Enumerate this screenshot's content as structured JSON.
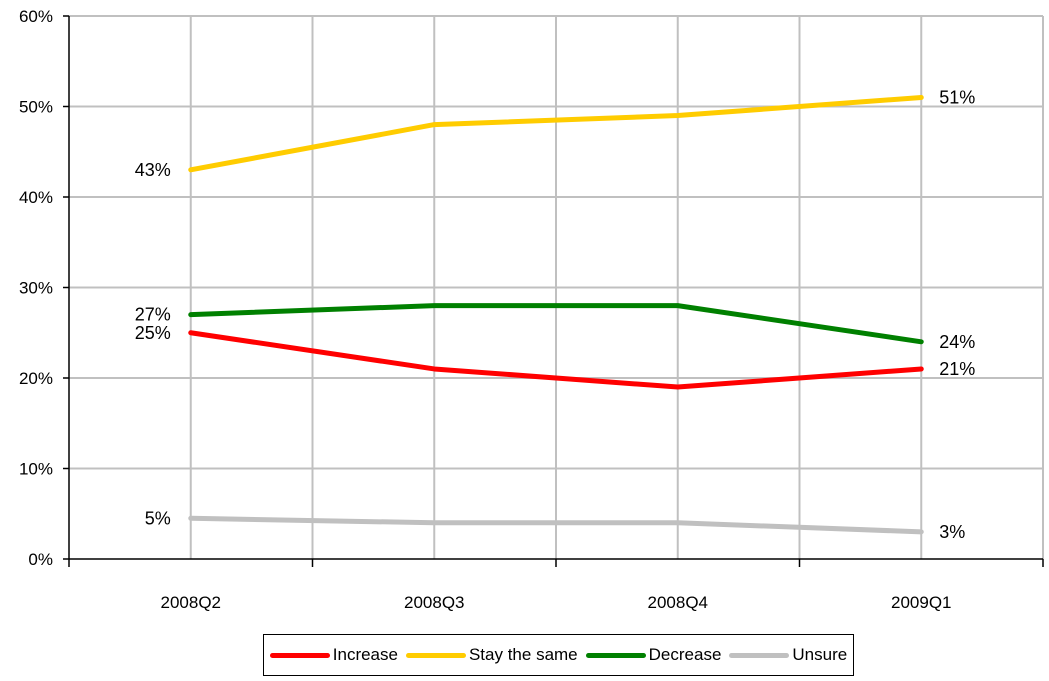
{
  "chart_data": {
    "type": "line",
    "categories": [
      "2008Q2",
      "2008Q3",
      "2008Q4",
      "2009Q1"
    ],
    "series": [
      {
        "name": "Increase",
        "color": "#ff0000",
        "values": [
          25,
          21,
          19,
          21
        ]
      },
      {
        "name": "Stay the same",
        "color": "#ffcc00",
        "values": [
          43,
          48,
          49,
          51
        ]
      },
      {
        "name": "Decrease",
        "color": "#008000",
        "values": [
          27,
          28,
          28,
          24
        ]
      },
      {
        "name": "Unsure",
        "color": "#c0c0c0",
        "values": [
          4.5,
          4,
          4,
          3
        ]
      }
    ],
    "data_labels": [
      {
        "series": 0,
        "point": 0,
        "text": "25%",
        "side": "left"
      },
      {
        "series": 0,
        "point": 3,
        "text": "21%",
        "side": "right"
      },
      {
        "series": 1,
        "point": 0,
        "text": "43%",
        "side": "left"
      },
      {
        "series": 1,
        "point": 3,
        "text": "51%",
        "side": "right"
      },
      {
        "series": 2,
        "point": 0,
        "text": "27%",
        "side": "left"
      },
      {
        "series": 2,
        "point": 3,
        "text": "24%",
        "side": "right"
      },
      {
        "series": 3,
        "point": 0,
        "text": "5%",
        "side": "left"
      },
      {
        "series": 3,
        "point": 3,
        "text": "3%",
        "side": "right"
      }
    ],
    "y_ticks": [
      "0%",
      "10%",
      "20%",
      "30%",
      "40%",
      "50%",
      "60%"
    ],
    "ylim": [
      0,
      60
    ],
    "grid": true,
    "legend_position": "bottom"
  }
}
